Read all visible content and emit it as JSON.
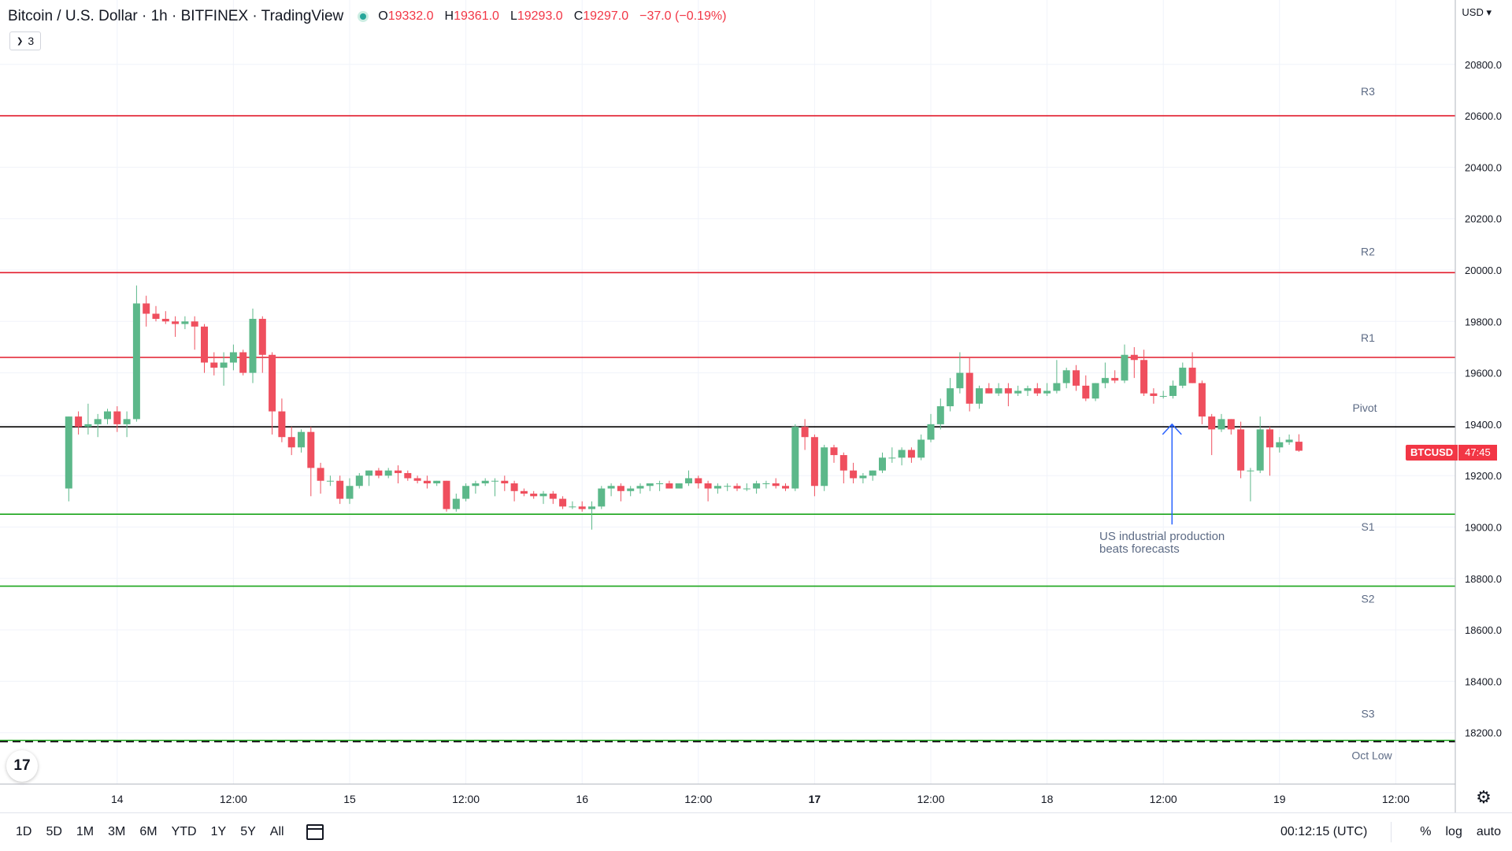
{
  "header": {
    "title": "Bitcoin / U.S. Dollar · 1h · BITFINEX · TradingView",
    "open_label": "O",
    "open": "19332.0",
    "high_label": "H",
    "high": "19361.0",
    "low_label": "L",
    "low": "19293.0",
    "close_label": "C",
    "close": "19297.0",
    "change": "−37.0 (−0.19%)"
  },
  "indicators_count": "3",
  "currency": "USD",
  "price_tag": {
    "symbol": "BTCUSD",
    "countdown": "47:45"
  },
  "annotation": {
    "line1": "US industrial production",
    "line2": "beats forecasts"
  },
  "bottom_bar": {
    "ranges": [
      "1D",
      "5D",
      "1M",
      "3M",
      "6M",
      "YTD",
      "1Y",
      "5Y",
      "All"
    ],
    "clock": "00:12:15 (UTC)",
    "percent": "%",
    "log": "log",
    "auto": "auto"
  },
  "logo_text": "17",
  "colors": {
    "up": "#5cb88a",
    "down": "#ef4f5e",
    "resistance": "#e21b2b",
    "support": "#1aa51a",
    "pivot": "#000000",
    "annotation": "#2962ff"
  },
  "chart_data": {
    "type": "candlestick",
    "y_axis": {
      "ticks": [
        18200,
        18400,
        18600,
        18800,
        19000,
        19200,
        19400,
        19600,
        19800,
        20000,
        20200,
        20400,
        20600,
        20800
      ],
      "min": 18000,
      "max": 20925
    },
    "x_axis": {
      "ticks": [
        {
          "label": "14",
          "i": 5
        },
        {
          "label": "12:00",
          "i": 17
        },
        {
          "label": "15",
          "i": 29
        },
        {
          "label": "12:00",
          "i": 41
        },
        {
          "label": "16",
          "i": 53
        },
        {
          "label": "12:00",
          "i": 65
        },
        {
          "label": "17",
          "i": 77
        },
        {
          "label": "12:00",
          "i": 89
        },
        {
          "label": "18",
          "i": 101
        },
        {
          "label": "12:00",
          "i": 113
        },
        {
          "label": "19",
          "i": 125
        },
        {
          "label": "12:00",
          "i": 137
        }
      ]
    },
    "levels": [
      {
        "name": "R3",
        "value": 20600,
        "kind": "resistance"
      },
      {
        "name": "R2",
        "value": 19990,
        "kind": "resistance"
      },
      {
        "name": "R1",
        "value": 19660,
        "kind": "resistance"
      },
      {
        "name": "Pivot",
        "value": 19390,
        "kind": "pivot"
      },
      {
        "name": "S1",
        "value": 19050,
        "kind": "support"
      },
      {
        "name": "S2",
        "value": 18770,
        "kind": "support"
      },
      {
        "name": "S3",
        "value": 18170,
        "kind": "support-dashed"
      },
      {
        "name": "Oct Low",
        "value": 18170,
        "kind": "support-dashed"
      }
    ],
    "annotation_arrow": {
      "i": 113.9,
      "from": 19010,
      "to": 19400
    },
    "candles": [
      [
        19150,
        19430,
        19100,
        19430
      ],
      [
        19430,
        19450,
        19360,
        19390
      ],
      [
        19390,
        19480,
        19360,
        19400
      ],
      [
        19400,
        19440,
        19350,
        19420
      ],
      [
        19420,
        19460,
        19400,
        19450
      ],
      [
        19450,
        19470,
        19370,
        19400
      ],
      [
        19400,
        19450,
        19350,
        19420
      ],
      [
        19420,
        19940,
        19410,
        19870
      ],
      [
        19870,
        19900,
        19780,
        19830
      ],
      [
        19830,
        19860,
        19800,
        19810
      ],
      [
        19810,
        19840,
        19790,
        19800
      ],
      [
        19800,
        19820,
        19740,
        19790
      ],
      [
        19790,
        19820,
        19770,
        19800
      ],
      [
        19800,
        19820,
        19690,
        19780
      ],
      [
        19780,
        19790,
        19600,
        19640
      ],
      [
        19640,
        19680,
        19590,
        19620
      ],
      [
        19620,
        19680,
        19550,
        19640
      ],
      [
        19640,
        19710,
        19610,
        19680
      ],
      [
        19680,
        19690,
        19590,
        19600
      ],
      [
        19600,
        19850,
        19560,
        19810
      ],
      [
        19810,
        19820,
        19600,
        19670
      ],
      [
        19670,
        19680,
        19360,
        19450
      ],
      [
        19450,
        19500,
        19330,
        19350
      ],
      [
        19350,
        19390,
        19280,
        19310
      ],
      [
        19310,
        19380,
        19290,
        19370
      ],
      [
        19370,
        19390,
        19120,
        19230
      ],
      [
        19230,
        19250,
        19130,
        19180
      ],
      [
        19180,
        19200,
        19160,
        19180
      ],
      [
        19180,
        19200,
        19090,
        19110
      ],
      [
        19110,
        19190,
        19090,
        19160
      ],
      [
        19160,
        19210,
        19150,
        19200
      ],
      [
        19200,
        19220,
        19160,
        19220
      ],
      [
        19220,
        19230,
        19190,
        19200
      ],
      [
        19200,
        19230,
        19190,
        19220
      ],
      [
        19220,
        19240,
        19170,
        19210
      ],
      [
        19210,
        19220,
        19180,
        19190
      ],
      [
        19190,
        19200,
        19170,
        19180
      ],
      [
        19180,
        19200,
        19150,
        19170
      ],
      [
        19170,
        19180,
        19160,
        19180
      ],
      [
        19180,
        19180,
        19060,
        19070
      ],
      [
        19070,
        19130,
        19060,
        19110
      ],
      [
        19110,
        19170,
        19100,
        19160
      ],
      [
        19160,
        19180,
        19130,
        19170
      ],
      [
        19170,
        19190,
        19160,
        19180
      ],
      [
        19180,
        19190,
        19120,
        19180
      ],
      [
        19180,
        19200,
        19140,
        19170
      ],
      [
        19170,
        19180,
        19100,
        19140
      ],
      [
        19140,
        19150,
        19120,
        19130
      ],
      [
        19130,
        19140,
        19110,
        19120
      ],
      [
        19120,
        19140,
        19090,
        19130
      ],
      [
        19130,
        19140,
        19090,
        19110
      ],
      [
        19110,
        19120,
        19070,
        19080
      ],
      [
        19080,
        19100,
        19070,
        19080
      ],
      [
        19080,
        19100,
        19060,
        19070
      ],
      [
        19070,
        19100,
        18990,
        19080
      ],
      [
        19080,
        19160,
        19070,
        19150
      ],
      [
        19150,
        19170,
        19120,
        19160
      ],
      [
        19160,
        19170,
        19100,
        19140
      ],
      [
        19140,
        19160,
        19120,
        19150
      ],
      [
        19150,
        19170,
        19130,
        19160
      ],
      [
        19160,
        19170,
        19140,
        19170
      ],
      [
        19170,
        19180,
        19140,
        19170
      ],
      [
        19170,
        19180,
        19150,
        19150
      ],
      [
        19150,
        19170,
        19150,
        19170
      ],
      [
        19170,
        19220,
        19160,
        19190
      ],
      [
        19190,
        19200,
        19150,
        19170
      ],
      [
        19170,
        19180,
        19100,
        19150
      ],
      [
        19150,
        19170,
        19130,
        19160
      ],
      [
        19160,
        19170,
        19140,
        19160
      ],
      [
        19160,
        19170,
        19140,
        19150
      ],
      [
        19150,
        19170,
        19140,
        19150
      ],
      [
        19150,
        19180,
        19130,
        19170
      ],
      [
        19170,
        19180,
        19150,
        19170
      ],
      [
        19170,
        19190,
        19150,
        19160
      ],
      [
        19160,
        19170,
        19140,
        19150
      ],
      [
        19150,
        19400,
        19140,
        19390
      ],
      [
        19390,
        19420,
        19300,
        19350
      ],
      [
        19350,
        19360,
        19120,
        19160
      ],
      [
        19160,
        19320,
        19140,
        19310
      ],
      [
        19310,
        19320,
        19250,
        19280
      ],
      [
        19280,
        19290,
        19170,
        19220
      ],
      [
        19220,
        19250,
        19170,
        19190
      ],
      [
        19190,
        19210,
        19170,
        19200
      ],
      [
        19200,
        19220,
        19180,
        19220
      ],
      [
        19220,
        19290,
        19210,
        19270
      ],
      [
        19270,
        19310,
        19250,
        19270
      ],
      [
        19270,
        19310,
        19240,
        19300
      ],
      [
        19300,
        19310,
        19250,
        19270
      ],
      [
        19270,
        19360,
        19260,
        19340
      ],
      [
        19340,
        19440,
        19330,
        19400
      ],
      [
        19400,
        19500,
        19380,
        19470
      ],
      [
        19470,
        19580,
        19450,
        19540
      ],
      [
        19540,
        19680,
        19520,
        19600
      ],
      [
        19600,
        19660,
        19450,
        19480
      ],
      [
        19480,
        19550,
        19460,
        19540
      ],
      [
        19540,
        19560,
        19520,
        19520
      ],
      [
        19520,
        19560,
        19510,
        19540
      ],
      [
        19540,
        19560,
        19470,
        19520
      ],
      [
        19520,
        19550,
        19510,
        19530
      ],
      [
        19530,
        19550,
        19510,
        19540
      ],
      [
        19540,
        19560,
        19510,
        19520
      ],
      [
        19520,
        19560,
        19510,
        19530
      ],
      [
        19530,
        19650,
        19520,
        19560
      ],
      [
        19560,
        19620,
        19540,
        19610
      ],
      [
        19610,
        19630,
        19530,
        19550
      ],
      [
        19550,
        19590,
        19490,
        19500
      ],
      [
        19500,
        19560,
        19490,
        19560
      ],
      [
        19560,
        19640,
        19540,
        19580
      ],
      [
        19580,
        19610,
        19560,
        19570
      ],
      [
        19570,
        19710,
        19560,
        19670
      ],
      [
        19670,
        19700,
        19580,
        19650
      ],
      [
        19650,
        19690,
        19510,
        19520
      ],
      [
        19520,
        19540,
        19480,
        19510
      ],
      [
        19510,
        19530,
        19500,
        19510
      ],
      [
        19510,
        19570,
        19500,
        19550
      ],
      [
        19550,
        19640,
        19540,
        19620
      ],
      [
        19620,
        19680,
        19560,
        19560
      ],
      [
        19560,
        19570,
        19400,
        19430
      ],
      [
        19430,
        19440,
        19280,
        19380
      ],
      [
        19380,
        19440,
        19370,
        19420
      ],
      [
        19420,
        19420,
        19360,
        19380
      ],
      [
        19380,
        19410,
        19190,
        19220
      ],
      [
        19220,
        19230,
        19100,
        19220
      ],
      [
        19220,
        19430,
        19210,
        19380
      ],
      [
        19380,
        19390,
        19200,
        19310
      ],
      [
        19310,
        19350,
        19290,
        19330
      ],
      [
        19330,
        19360,
        19320,
        19340
      ],
      [
        19332,
        19361,
        19293,
        19297
      ]
    ]
  }
}
